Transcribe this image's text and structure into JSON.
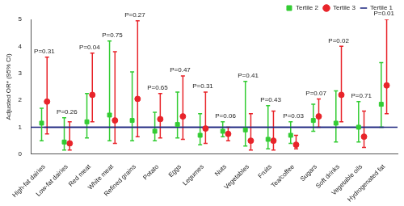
{
  "chart_data": {
    "type": "scatter",
    "y_label": "Adjusted OR* (95% CI)",
    "categories": [
      "High-fat dairies",
      "Low-fat dairies",
      "Red meat",
      "White meat",
      "Refined grains",
      "Potato",
      "Eggs",
      "Legumes",
      "Nuts",
      "Vegetables",
      "Fruits",
      "Tea/coffee",
      "Sugars",
      "Soft drinks",
      "Vegetable oils",
      "Hydrogenated fat"
    ],
    "annotations": [
      "P=0.31",
      "P=0.26",
      "P=0.04",
      "P=0.75",
      "P=0.27",
      "P=0.65",
      "P=0.47",
      "P=0.31",
      "P=0.06",
      "P=0.41",
      "P=0.43",
      "P=0.03",
      "P=0.07",
      "P=0.02",
      "P=0.71",
      "P=0.01"
    ],
    "series": [
      {
        "name": "Tertile 1",
        "type": "line",
        "line_style": "solid",
        "color": "#1a237e",
        "values": [
          1,
          1,
          1,
          1,
          1,
          1,
          1,
          1,
          1,
          1,
          1,
          1,
          1,
          1,
          1,
          1
        ]
      },
      {
        "name": "Tertile 2",
        "marker": "square",
        "color": "#33cc33",
        "values": [
          1.15,
          0.45,
          1.2,
          1.45,
          1.25,
          0.85,
          1.1,
          0.7,
          0.85,
          0.9,
          0.55,
          0.7,
          1.25,
          1.15,
          1.0,
          1.85
        ],
        "ci_lower": [
          0.5,
          0.15,
          0.6,
          0.5,
          0.5,
          0.5,
          0.6,
          0.35,
          0.65,
          0.3,
          0.2,
          0.4,
          0.85,
          0.45,
          0.45,
          1.0
        ],
        "ci_upper": [
          1.7,
          1.35,
          2.25,
          4.2,
          3.05,
          1.55,
          2.3,
          1.5,
          1.2,
          2.7,
          1.8,
          1.2,
          1.85,
          2.35,
          1.95,
          3.4
        ]
      },
      {
        "name": "Tertile 3",
        "marker": "circle",
        "color": "#e8242a",
        "values": [
          1.95,
          0.4,
          2.2,
          1.25,
          2.05,
          1.3,
          1.4,
          0.95,
          0.75,
          0.5,
          0.5,
          0.35,
          1.4,
          2.2,
          0.65,
          2.55
        ],
        "ci_lower": [
          0.75,
          0.15,
          1.2,
          0.4,
          0.65,
          0.6,
          0.55,
          0.4,
          0.5,
          0.15,
          0.15,
          0.2,
          1.0,
          1.2,
          0.25,
          1.5
        ],
        "ci_upper": [
          3.6,
          1.2,
          3.75,
          3.8,
          4.95,
          2.25,
          2.9,
          2.3,
          1.0,
          1.5,
          1.6,
          0.7,
          2.05,
          4.0,
          1.6,
          5.0
        ]
      }
    ],
    "ylim": [
      0,
      5
    ],
    "yticks": [
      0,
      1,
      2,
      3,
      4,
      5
    ],
    "grid": false,
    "legend": "top-right"
  }
}
